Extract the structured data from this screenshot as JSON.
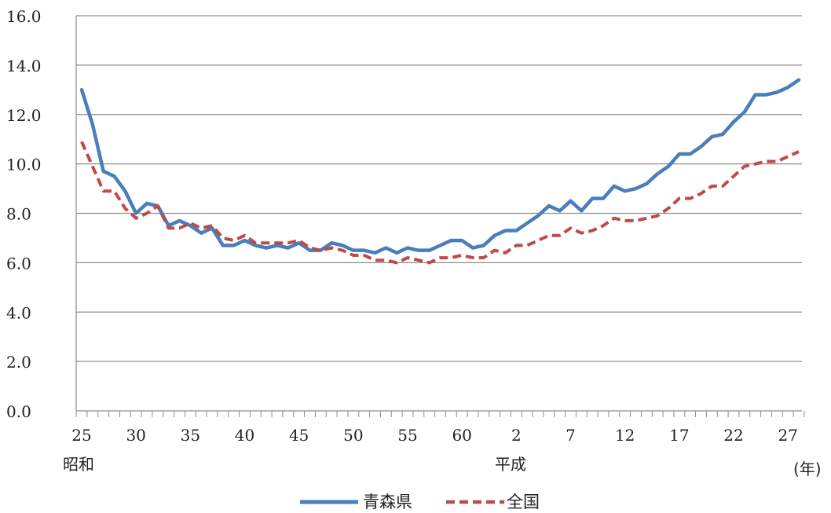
{
  "chart_data": {
    "type": "line",
    "title": "",
    "xlabel": "",
    "ylabel": "",
    "x_unit_label": "(年)",
    "ylim": [
      0,
      16
    ],
    "y_ticks": [
      "0.0",
      "2.0",
      "4.0",
      "6.0",
      "8.0",
      "10.0",
      "12.0",
      "14.0",
      "16.0"
    ],
    "x_tick_labels": [
      "25",
      "30",
      "35",
      "40",
      "45",
      "50",
      "55",
      "60",
      "2",
      "7",
      "12",
      "17",
      "22",
      "27"
    ],
    "era_labels": [
      "昭和",
      "平成"
    ],
    "x_years": [
      1950,
      1951,
      1952,
      1953,
      1954,
      1955,
      1956,
      1957,
      1958,
      1959,
      1960,
      1961,
      1962,
      1963,
      1964,
      1965,
      1966,
      1967,
      1968,
      1969,
      1970,
      1971,
      1972,
      1973,
      1974,
      1975,
      1976,
      1977,
      1978,
      1979,
      1980,
      1981,
      1982,
      1983,
      1984,
      1985,
      1986,
      1987,
      1988,
      1989,
      1990,
      1991,
      1992,
      1993,
      1994,
      1995,
      1996,
      1997,
      1998,
      1999,
      2000,
      2001,
      2002,
      2003,
      2004,
      2005,
      2006,
      2007,
      2008,
      2009,
      2010,
      2011,
      2012,
      2013,
      2014,
      2015,
      2016
    ],
    "grid": true,
    "legend_position": "bottom",
    "series": [
      {
        "name": "青森県",
        "color": "#4a7ebb",
        "style": "solid",
        "values": [
          13.0,
          11.6,
          9.7,
          9.5,
          8.9,
          8.0,
          8.4,
          8.3,
          7.5,
          7.7,
          7.5,
          7.2,
          7.4,
          6.7,
          6.7,
          6.9,
          6.7,
          6.6,
          6.7,
          6.6,
          6.8,
          6.5,
          6.5,
          6.8,
          6.7,
          6.5,
          6.5,
          6.4,
          6.6,
          6.4,
          6.6,
          6.5,
          6.5,
          6.7,
          6.9,
          6.9,
          6.6,
          6.7,
          7.1,
          7.3,
          7.3,
          7.6,
          7.9,
          8.3,
          8.1,
          8.5,
          8.1,
          8.6,
          8.6,
          9.1,
          8.9,
          9.0,
          9.2,
          9.6,
          9.9,
          10.4,
          10.4,
          10.7,
          11.1,
          11.2,
          11.7,
          12.1,
          12.8,
          12.8,
          12.9,
          13.1,
          13.4
        ]
      },
      {
        "name": "全国",
        "color": "#be4b48",
        "style": "dashed",
        "values": [
          10.9,
          9.9,
          8.9,
          8.9,
          8.2,
          7.8,
          8.0,
          8.3,
          7.4,
          7.4,
          7.6,
          7.4,
          7.5,
          7.0,
          6.9,
          7.1,
          6.8,
          6.8,
          6.8,
          6.8,
          6.9,
          6.6,
          6.5,
          6.6,
          6.5,
          6.3,
          6.3,
          6.1,
          6.1,
          6.0,
          6.2,
          6.1,
          6.0,
          6.2,
          6.2,
          6.3,
          6.2,
          6.2,
          6.5,
          6.4,
          6.7,
          6.7,
          6.9,
          7.1,
          7.1,
          7.4,
          7.2,
          7.3,
          7.5,
          7.8,
          7.7,
          7.7,
          7.8,
          7.9,
          8.2,
          8.6,
          8.6,
          8.8,
          9.1,
          9.1,
          9.5,
          9.9,
          10.0,
          10.1,
          10.1,
          10.3,
          10.5
        ]
      }
    ]
  }
}
